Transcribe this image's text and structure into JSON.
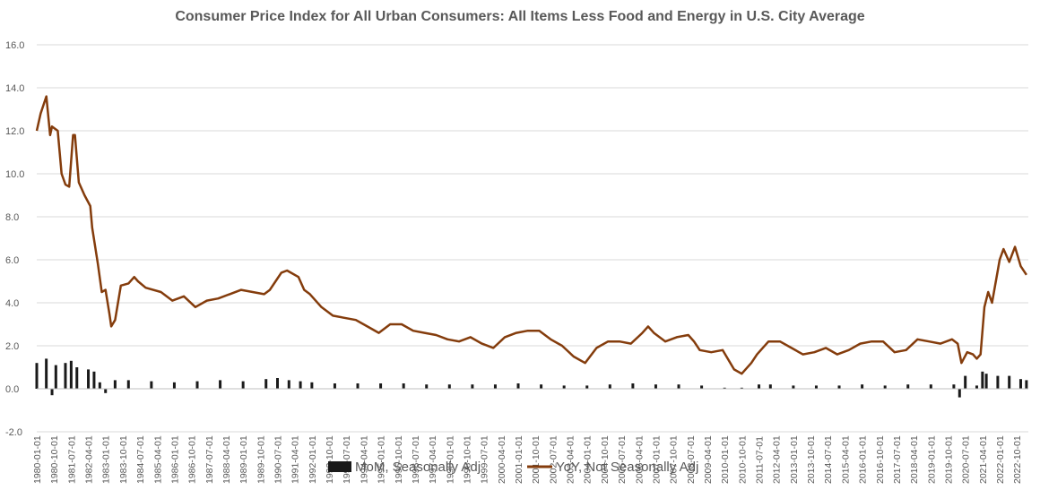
{
  "chart_data": {
    "type": "bar+line",
    "title": "Consumer Price Index for All Urban Consumers: All Items Less Food and Energy in U.S. City Average",
    "xlabel": "",
    "ylabel": "",
    "ylim": [
      -2.0,
      16.0
    ],
    "yticks": [
      "-2.0",
      "0.0",
      "2.0",
      "4.0",
      "6.0",
      "8.0",
      "10.0",
      "12.0",
      "14.0",
      "16.0"
    ],
    "xlim": [
      "1980-01",
      "2023-04"
    ],
    "xticks": [
      "1980-01-01",
      "1980-10-01",
      "1981-07-01",
      "1982-04-01",
      "1983-01-01",
      "1983-10-01",
      "1984-07-01",
      "1985-04-01",
      "1986-01-01",
      "1986-10-01",
      "1987-07-01",
      "1988-04-01",
      "1989-01-01",
      "1989-10-01",
      "1990-07-01",
      "1991-04-01",
      "1992-01-01",
      "1992-10-01",
      "1993-07-01",
      "1994-04-01",
      "1995-01-01",
      "1995-10-01",
      "1996-07-01",
      "1997-04-01",
      "1998-01-01",
      "1998-10-01",
      "1999-07-01",
      "2000-04-01",
      "2001-01-01",
      "2001-10-01",
      "2002-07-01",
      "2003-04-01",
      "2004-01-01",
      "2004-10-01",
      "2005-07-01",
      "2006-04-01",
      "2007-01-01",
      "2007-10-01",
      "2008-07-01",
      "2009-04-01",
      "2010-01-01",
      "2010-10-01",
      "2011-07-01",
      "2012-04-01",
      "2013-01-01",
      "2013-10-01",
      "2014-07-01",
      "2015-04-01",
      "2016-01-01",
      "2016-10-01",
      "2017-07-01",
      "2018-04-01",
      "2019-01-01",
      "2019-10-01",
      "2020-07-01",
      "2021-04-01",
      "2022-01-01",
      "2022-10-01"
    ],
    "grid": "horizontal",
    "legend_position": "bottom",
    "series": [
      {
        "name": "MoM, Seasonally Adj",
        "kind": "bar",
        "color": "#1a1a1a",
        "x": [
          "1980-01",
          "1980-06",
          "1980-09",
          "1980-11",
          "1981-04",
          "1981-07",
          "1981-10",
          "1982-04",
          "1982-07",
          "1982-10",
          "1983-01",
          "1983-06",
          "1984-01",
          "1985-01",
          "1986-01",
          "1987-01",
          "1988-01",
          "1989-01",
          "1990-01",
          "1990-07",
          "1991-01",
          "1991-07",
          "1992-01",
          "1993-01",
          "1994-01",
          "1995-01",
          "1996-01",
          "1997-01",
          "1998-01",
          "1999-01",
          "2000-01",
          "2001-01",
          "2002-01",
          "2003-01",
          "2004-01",
          "2005-01",
          "2006-01",
          "2007-01",
          "2008-01",
          "2009-01",
          "2010-01",
          "2010-10",
          "2011-07",
          "2012-01",
          "2013-01",
          "2014-01",
          "2015-01",
          "2016-01",
          "2017-01",
          "2018-01",
          "2019-01",
          "2020-01",
          "2020-04",
          "2020-07",
          "2021-01",
          "2021-04",
          "2021-06",
          "2021-12",
          "2022-06",
          "2022-12",
          "2023-03"
        ],
        "values": [
          1.2,
          1.4,
          -0.3,
          1.1,
          1.2,
          1.3,
          1.0,
          0.9,
          0.8,
          0.3,
          -0.2,
          0.4,
          0.4,
          0.35,
          0.3,
          0.35,
          0.4,
          0.35,
          0.45,
          0.5,
          0.4,
          0.35,
          0.3,
          0.25,
          0.25,
          0.25,
          0.25,
          0.2,
          0.2,
          0.2,
          0.2,
          0.25,
          0.2,
          0.15,
          0.15,
          0.2,
          0.25,
          0.2,
          0.2,
          0.15,
          0.05,
          0.05,
          0.2,
          0.2,
          0.15,
          0.15,
          0.15,
          0.2,
          0.15,
          0.2,
          0.2,
          0.2,
          -0.4,
          0.6,
          0.15,
          0.8,
          0.7,
          0.6,
          0.6,
          0.45,
          0.4
        ]
      },
      {
        "name": "YoY, Not Seasonally Adj",
        "kind": "line",
        "color": "#843c0c",
        "x": [
          "1980-01",
          "1980-03",
          "1980-06",
          "1980-08",
          "1980-09",
          "1980-12",
          "1981-02",
          "1981-04",
          "1981-06",
          "1981-08",
          "1981-09",
          "1981-11",
          "1982-02",
          "1982-05",
          "1982-06",
          "1982-09",
          "1982-11",
          "1983-01",
          "1983-03",
          "1983-04",
          "1983-06",
          "1983-09",
          "1984-01",
          "1984-04",
          "1984-06",
          "1984-10",
          "1985-06",
          "1985-12",
          "1986-06",
          "1986-12",
          "1987-06",
          "1987-12",
          "1988-06",
          "1988-12",
          "1989-06",
          "1989-12",
          "1990-03",
          "1990-06",
          "1990-09",
          "1990-12",
          "1991-06",
          "1991-09",
          "1991-12",
          "1992-06",
          "1992-12",
          "1993-06",
          "1993-12",
          "1994-06",
          "1994-12",
          "1995-06",
          "1995-12",
          "1996-06",
          "1996-12",
          "1997-06",
          "1997-12",
          "1998-06",
          "1998-12",
          "1999-06",
          "1999-12",
          "2000-06",
          "2000-12",
          "2001-06",
          "2001-12",
          "2002-06",
          "2002-12",
          "2003-06",
          "2003-12",
          "2004-06",
          "2004-12",
          "2005-06",
          "2005-12",
          "2006-06",
          "2006-09",
          "2006-12",
          "2007-06",
          "2007-12",
          "2008-06",
          "2008-09",
          "2008-12",
          "2009-06",
          "2009-12",
          "2010-06",
          "2010-10",
          "2011-03",
          "2011-06",
          "2011-12",
          "2012-06",
          "2012-12",
          "2013-06",
          "2013-12",
          "2014-06",
          "2014-12",
          "2015-06",
          "2015-12",
          "2016-06",
          "2016-12",
          "2017-06",
          "2017-12",
          "2018-06",
          "2018-12",
          "2019-06",
          "2019-12",
          "2020-03",
          "2020-05",
          "2020-08",
          "2020-11",
          "2021-01",
          "2021-03",
          "2021-05",
          "2021-07",
          "2021-09",
          "2021-12",
          "2022-01",
          "2022-03",
          "2022-06",
          "2022-09",
          "2022-12",
          "2023-03"
        ],
        "values": [
          12.0,
          12.8,
          13.6,
          11.8,
          12.2,
          12.0,
          10.0,
          9.5,
          9.4,
          11.8,
          11.8,
          9.6,
          9.0,
          8.5,
          7.5,
          5.8,
          4.5,
          4.6,
          3.5,
          2.9,
          3.2,
          4.8,
          4.9,
          5.2,
          5.0,
          4.7,
          4.5,
          4.1,
          4.3,
          3.8,
          4.1,
          4.2,
          4.4,
          4.6,
          4.5,
          4.4,
          4.6,
          5.0,
          5.4,
          5.5,
          5.2,
          4.6,
          4.4,
          3.8,
          3.4,
          3.3,
          3.2,
          2.9,
          2.6,
          3.0,
          3.0,
          2.7,
          2.6,
          2.5,
          2.3,
          2.2,
          2.4,
          2.1,
          1.9,
          2.4,
          2.6,
          2.7,
          2.7,
          2.3,
          2.0,
          1.5,
          1.2,
          1.9,
          2.2,
          2.2,
          2.1,
          2.6,
          2.9,
          2.6,
          2.2,
          2.4,
          2.5,
          2.2,
          1.8,
          1.7,
          1.8,
          0.9,
          0.7,
          1.2,
          1.6,
          2.2,
          2.2,
          1.9,
          1.6,
          1.7,
          1.9,
          1.6,
          1.8,
          2.1,
          2.2,
          2.2,
          1.7,
          1.8,
          2.3,
          2.2,
          2.1,
          2.3,
          2.1,
          1.2,
          1.7,
          1.6,
          1.4,
          1.6,
          3.8,
          4.5,
          4.0,
          5.5,
          6.0,
          6.5,
          5.9,
          6.6,
          5.7,
          5.3
        ]
      }
    ]
  }
}
